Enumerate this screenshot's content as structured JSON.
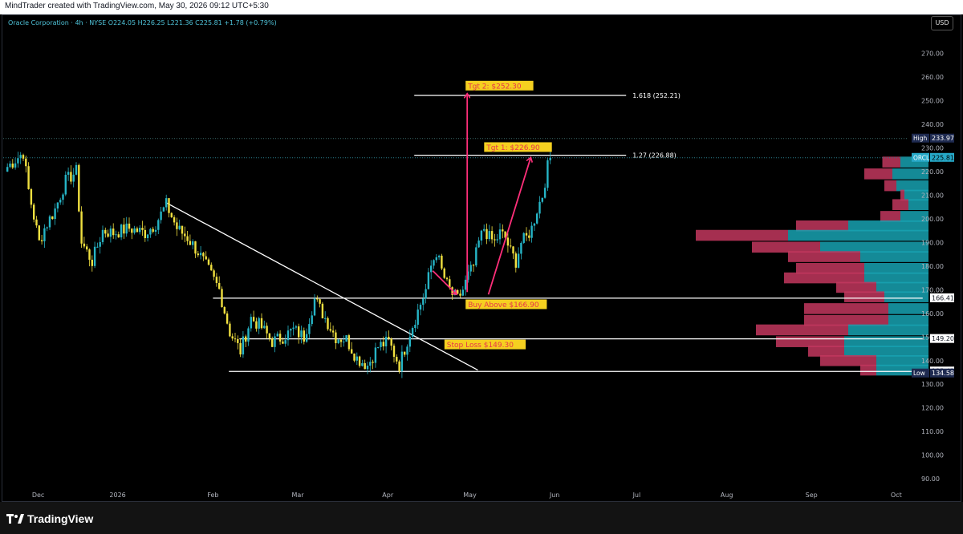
{
  "header": {
    "attribution": "MindTrader created with TradingView.com, May 30, 2026 09:12 UTC+5:30",
    "symbol_line": "Oracle Corporation · 4h · NYSE  O224.05  H226.25  L221.36  C225.81  +1.78 (+0.79%)",
    "currency": "USD"
  },
  "footer": {
    "brand": "TradingView"
  },
  "colors": {
    "up": "#26b5c6",
    "down": "#f0e040",
    "hline": "#ffffff",
    "trend": "#ffffff",
    "arrow": "#ff2f7a",
    "label_bg": "#f5d020",
    "label_text": "#e8334a",
    "vp_buy": "#17a2b2",
    "vp_sell": "#c2375e",
    "current_tag": "#26a8c7"
  },
  "chart_data": {
    "type": "candlestick",
    "title": "Oracle Corporation · 4h · NYSE",
    "timeframe": "4h",
    "ylim": [
      87,
      279
    ],
    "y_ticks": [
      90,
      100,
      110,
      120,
      130,
      140,
      150,
      160,
      170,
      180,
      190,
      200,
      210,
      220,
      230,
      240,
      250,
      260,
      270
    ],
    "x_ticks": [
      {
        "label": "Dec",
        "bar": 12
      },
      {
        "label": "2026",
        "bar": 42
      },
      {
        "label": "Feb",
        "bar": 78
      },
      {
        "label": "Mar",
        "bar": 110
      },
      {
        "label": "Apr",
        "bar": 144
      },
      {
        "label": "May",
        "bar": 175
      },
      {
        "label": "Jun",
        "bar": 207
      },
      {
        "label": "Jul",
        "bar": 238
      },
      {
        "label": "Aug",
        "bar": 272
      },
      {
        "label": "Sep",
        "bar": 304
      },
      {
        "label": "Oct",
        "bar": 336
      }
    ],
    "price_path": [
      [
        0,
        222
      ],
      [
        6,
        228
      ],
      [
        8,
        212
      ],
      [
        12,
        190
      ],
      [
        14,
        196
      ],
      [
        18,
        204
      ],
      [
        22,
        216
      ],
      [
        26,
        220
      ],
      [
        28,
        190
      ],
      [
        32,
        182
      ],
      [
        36,
        195
      ],
      [
        40,
        194
      ],
      [
        46,
        196
      ],
      [
        52,
        194
      ],
      [
        56,
        198
      ],
      [
        60,
        206
      ],
      [
        64,
        196
      ],
      [
        68,
        192
      ],
      [
        72,
        186
      ],
      [
        76,
        178
      ],
      [
        80,
        170
      ],
      [
        84,
        152
      ],
      [
        88,
        144
      ],
      [
        92,
        158
      ],
      [
        96,
        154
      ],
      [
        100,
        148
      ],
      [
        104,
        150
      ],
      [
        108,
        153
      ],
      [
        112,
        150
      ],
      [
        116,
        166
      ],
      [
        120,
        158
      ],
      [
        124,
        150
      ],
      [
        128,
        149
      ],
      [
        132,
        141
      ],
      [
        136,
        138
      ],
      [
        140,
        146
      ],
      [
        144,
        148
      ],
      [
        148,
        138
      ],
      [
        152,
        152
      ],
      [
        156,
        164
      ],
      [
        158,
        170
      ],
      [
        160,
        180
      ],
      [
        162,
        186
      ],
      [
        164,
        178
      ],
      [
        166,
        172
      ],
      [
        168,
        168
      ],
      [
        170,
        166
      ],
      [
        172,
        170
      ],
      [
        174,
        176
      ],
      [
        176,
        180
      ],
      [
        178,
        190
      ],
      [
        180,
        196
      ],
      [
        182,
        192
      ],
      [
        184,
        190
      ],
      [
        186,
        194
      ],
      [
        188,
        192
      ],
      [
        190,
        186
      ],
      [
        192,
        182
      ],
      [
        194,
        190
      ],
      [
        196,
        192
      ],
      [
        198,
        196
      ],
      [
        200,
        204
      ],
      [
        202,
        210
      ],
      [
        204,
        222
      ],
      [
        205,
        225.81
      ]
    ],
    "last": {
      "open": 224.05,
      "high": 226.25,
      "low": 221.36,
      "close": 225.81,
      "change": 1.78,
      "change_pct": 0.79
    },
    "price_labels": [
      {
        "label": "High",
        "value": 233.97,
        "text": "233.97"
      },
      {
        "label": "ORCL",
        "value": 225.81,
        "text": "225.81"
      },
      {
        "label": "",
        "value": 166.41,
        "text": "166.41"
      },
      {
        "label": "",
        "value": 149.2,
        "text": "149.20"
      },
      {
        "label": "",
        "value": 135.43,
        "text": "135.43"
      },
      {
        "label": "Low",
        "value": 134.58,
        "text": "134.58"
      }
    ],
    "horizontal_lines": [
      {
        "value": 252.21,
        "from_bar": 154,
        "to_bar": 234,
        "label": "1.618 (252.21)"
      },
      {
        "value": 226.88,
        "from_bar": 154,
        "to_bar": 234,
        "label": "1.27 (226.88)"
      },
      {
        "value": 166.41,
        "from_bar": 78,
        "to_bar": 346,
        "label": ""
      },
      {
        "value": 149.2,
        "from_bar": 88,
        "to_bar": 346,
        "label": ""
      },
      {
        "value": 135.43,
        "from_bar": 84,
        "to_bar": 346,
        "label": ""
      }
    ],
    "trendline": {
      "from": [
        60,
        207
      ],
      "to": [
        178,
        136
      ]
    },
    "arrows": [
      {
        "from": [
          161,
          178
        ],
        "to": [
          170,
          168
        ]
      },
      {
        "from": [
          174,
          169
        ],
        "to": [
          174,
          253
        ]
      },
      {
        "from": [
          182,
          168
        ],
        "to": [
          198,
          226
        ]
      }
    ],
    "annotations": [
      {
        "text": "Tgt 2: $252.30",
        "bar": 174,
        "value": 256
      },
      {
        "text": "Tgt 1: $226.90",
        "bar": 181,
        "value": 230
      },
      {
        "text": "Buy Above $166.90",
        "bar": 174,
        "value": 163.5
      },
      {
        "text": "Stop Loss $149.30",
        "bar": 166,
        "value": 146.5
      }
    ],
    "volume_profile": {
      "note": "buy/sell volume at price, right aligned",
      "rows": [
        {
          "price": 224,
          "buy": 14,
          "sell": 9
        },
        {
          "price": 219,
          "buy": 18,
          "sell": 14
        },
        {
          "price": 214,
          "buy": 16,
          "sell": 6
        },
        {
          "price": 210,
          "buy": 12,
          "sell": 2
        },
        {
          "price": 206,
          "buy": 10,
          "sell": 8
        },
        {
          "price": 201,
          "buy": 14,
          "sell": 10
        },
        {
          "price": 197,
          "buy": 40,
          "sell": 26
        },
        {
          "price": 193,
          "buy": 70,
          "sell": 46
        },
        {
          "price": 188,
          "buy": 54,
          "sell": 34
        },
        {
          "price": 184,
          "buy": 34,
          "sell": 36
        },
        {
          "price": 179,
          "buy": 32,
          "sell": 34
        },
        {
          "price": 175,
          "buy": 32,
          "sell": 40
        },
        {
          "price": 171,
          "buy": 26,
          "sell": 20
        },
        {
          "price": 167,
          "buy": 22,
          "sell": 20
        },
        {
          "price": 162,
          "buy": 20,
          "sell": 42
        },
        {
          "price": 157,
          "buy": 20,
          "sell": 42
        },
        {
          "price": 153,
          "buy": 40,
          "sell": 46
        },
        {
          "price": 148,
          "buy": 42,
          "sell": 34
        },
        {
          "price": 144,
          "buy": 42,
          "sell": 18
        },
        {
          "price": 140,
          "buy": 26,
          "sell": 28
        },
        {
          "price": 136,
          "buy": 26,
          "sell": 8
        }
      ]
    }
  }
}
